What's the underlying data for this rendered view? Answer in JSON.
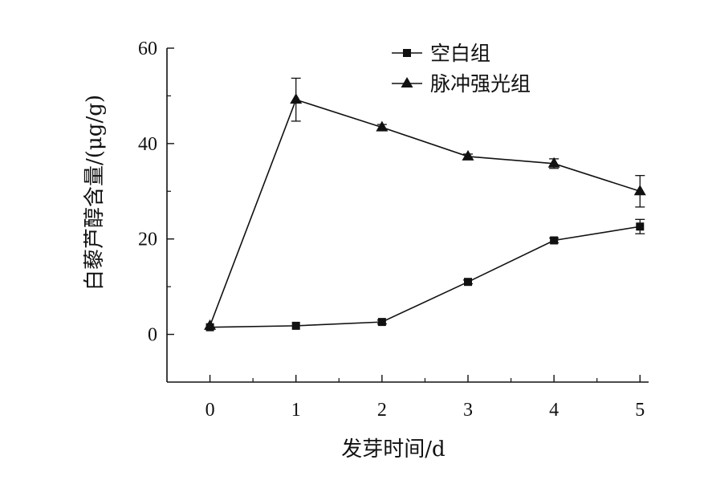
{
  "chart_data": {
    "type": "line",
    "xlabel": "发芽时间/d",
    "ylabel": "白藜芦醇含量/(μg/g)",
    "x": [
      0,
      1,
      2,
      3,
      4,
      5
    ],
    "xlim": [
      -0.5,
      5.1
    ],
    "ylim": [
      -10,
      60
    ],
    "xticks": [
      0,
      1,
      2,
      3,
      4,
      5
    ],
    "yticks": [
      0,
      20,
      40,
      60
    ],
    "xtick_labels": [
      "0",
      "1",
      "2",
      "3",
      "4",
      "5"
    ],
    "ytick_labels": [
      "0",
      "20",
      "40",
      "60"
    ],
    "grid": false,
    "legend_position": "top-center",
    "series": [
      {
        "name": "空白组",
        "marker": "square",
        "color": "#111111",
        "values": [
          1.5,
          1.8,
          2.6,
          11.0,
          19.7,
          22.6
        ],
        "errors": [
          0.3,
          0.3,
          0.4,
          0.4,
          0.5,
          1.5
        ]
      },
      {
        "name": "脉冲强光组",
        "marker": "triangle",
        "color": "#111111",
        "values": [
          1.8,
          49.2,
          43.4,
          37.3,
          35.8,
          30.0
        ],
        "errors": [
          0.3,
          4.5,
          0.6,
          0.5,
          1.0,
          3.3
        ]
      }
    ]
  }
}
